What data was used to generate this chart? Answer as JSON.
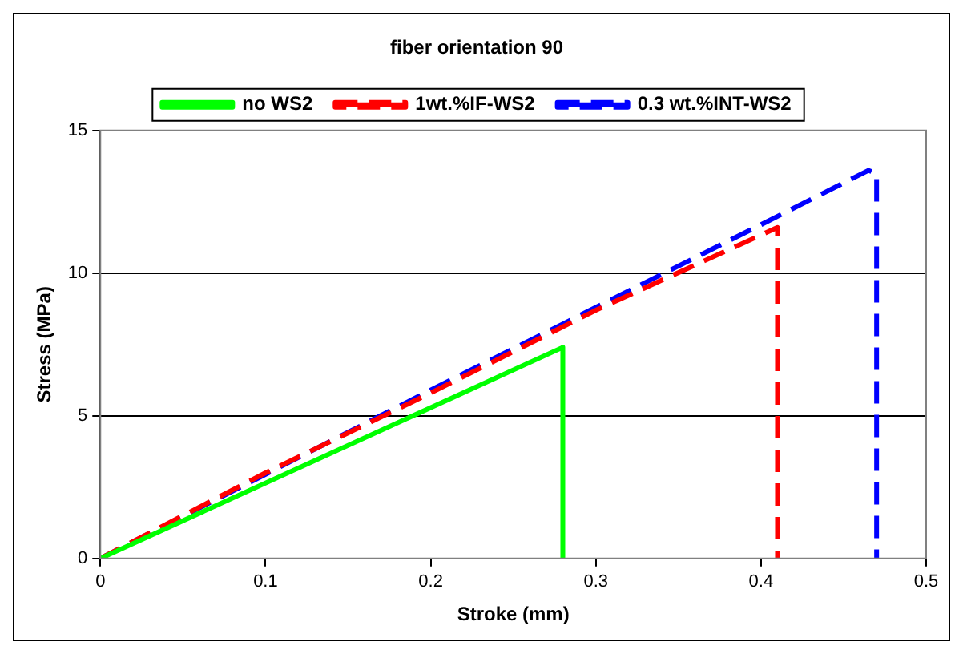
{
  "chart_data": {
    "type": "line",
    "title": "fiber orientation 90",
    "xlabel": "Stroke (mm)",
    "ylabel": "Stress (MPa)",
    "xlim": [
      0,
      0.5
    ],
    "xticks": [
      0,
      0.1,
      0.2,
      0.3,
      0.4,
      0.5
    ],
    "ylim": [
      0,
      15
    ],
    "yticks": [
      0,
      5,
      10,
      15
    ],
    "grid": "y",
    "legend": "top",
    "marker": "none",
    "series": [
      {
        "name": "no WS2",
        "color": "#00ff00",
        "line_style": "solid",
        "x": [
          0,
          0.28,
          0.28
        ],
        "values": [
          0,
          7.4,
          0
        ]
      },
      {
        "name": "1wt.%IF-WS2",
        "color": "#ff0000",
        "line_style": "dashed",
        "x": [
          0,
          0.1,
          0.2,
          0.3,
          0.41,
          0.41
        ],
        "values": [
          0,
          3,
          5.8,
          8.7,
          11.6,
          0
        ]
      },
      {
        "name": "0.3 wt.%INT-WS2",
        "color": "#0000ff",
        "line_style": "dashed",
        "x": [
          0,
          0.2,
          0.3,
          0.4,
          0.465,
          0.47,
          0.47
        ],
        "values": [
          0,
          5.9,
          8.8,
          11.7,
          13.6,
          13.5,
          0
        ]
      }
    ]
  }
}
